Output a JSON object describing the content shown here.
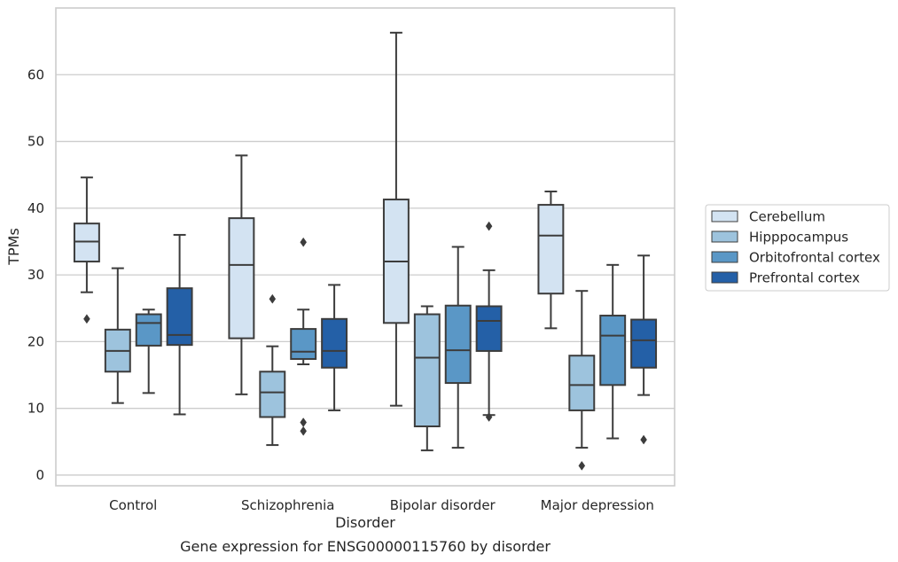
{
  "chart_data": {
    "type": "box",
    "xlabel": "Disorder",
    "ylabel": "TPMs",
    "caption": "Gene expression for ENSG00000115760 by disorder",
    "ylim": [
      -1.6,
      70
    ],
    "yticks": [
      0,
      10,
      20,
      30,
      40,
      50,
      60
    ],
    "grid": "horizontal",
    "legend_position": "right",
    "categories": [
      "Control",
      "Schizophrenia",
      "Bipolar disorder",
      "Major depression"
    ],
    "series": [
      {
        "name": "Cerebellum",
        "color": "#d3e3f2",
        "boxes": [
          {
            "whislo": 27.4,
            "q1": 32.0,
            "med": 35.0,
            "q3": 37.7,
            "whishi": 44.6,
            "fliers": [
              23.4
            ]
          },
          {
            "whislo": 12.1,
            "q1": 20.5,
            "med": 31.5,
            "q3": 38.5,
            "whishi": 47.9,
            "fliers": []
          },
          {
            "whislo": 10.4,
            "q1": 22.8,
            "med": 32.0,
            "q3": 41.3,
            "whishi": 66.3,
            "fliers": []
          },
          {
            "whislo": 22.0,
            "q1": 27.2,
            "med": 35.9,
            "q3": 40.5,
            "whishi": 42.5,
            "fliers": []
          }
        ]
      },
      {
        "name": "Hipppocampus",
        "color": "#9dc3dd",
        "boxes": [
          {
            "whislo": 10.8,
            "q1": 15.5,
            "med": 18.6,
            "q3": 21.8,
            "whishi": 31.0,
            "fliers": []
          },
          {
            "whislo": 4.5,
            "q1": 8.7,
            "med": 12.4,
            "q3": 15.5,
            "whishi": 19.3,
            "fliers": [
              26.4
            ]
          },
          {
            "whislo": 3.7,
            "q1": 7.3,
            "med": 17.6,
            "q3": 24.1,
            "whishi": 25.3,
            "fliers": []
          },
          {
            "whislo": 4.1,
            "q1": 9.7,
            "med": 13.5,
            "q3": 17.9,
            "whishi": 27.6,
            "fliers": [
              1.4
            ]
          }
        ]
      },
      {
        "name": "Orbitofrontal cortex",
        "color": "#5a97c6",
        "boxes": [
          {
            "whislo": 12.3,
            "q1": 19.4,
            "med": 22.8,
            "q3": 24.1,
            "whishi": 24.8,
            "fliers": []
          },
          {
            "whislo": 16.6,
            "q1": 17.4,
            "med": 18.5,
            "q3": 21.9,
            "whishi": 24.8,
            "fliers": [
              34.9,
              7.9,
              6.6
            ]
          },
          {
            "whislo": 4.1,
            "q1": 13.8,
            "med": 18.7,
            "q3": 25.4,
            "whishi": 34.2,
            "fliers": []
          },
          {
            "whislo": 5.5,
            "q1": 13.5,
            "med": 20.9,
            "q3": 23.9,
            "whishi": 31.5,
            "fliers": []
          }
        ]
      },
      {
        "name": "Prefrontal cortex",
        "color": "#2460a7",
        "boxes": [
          {
            "whislo": 9.1,
            "q1": 19.5,
            "med": 21.0,
            "q3": 28.0,
            "whishi": 36.0,
            "fliers": []
          },
          {
            "whislo": 9.7,
            "q1": 16.1,
            "med": 18.6,
            "q3": 23.4,
            "whishi": 28.5,
            "fliers": []
          },
          {
            "whislo": 9.0,
            "q1": 18.6,
            "med": 23.1,
            "q3": 25.3,
            "whishi": 30.7,
            "fliers": [
              37.3,
              8.7
            ]
          },
          {
            "whislo": 12.0,
            "q1": 16.1,
            "med": 20.2,
            "q3": 23.3,
            "whishi": 32.9,
            "fliers": [
              5.3
            ]
          }
        ]
      }
    ]
  }
}
